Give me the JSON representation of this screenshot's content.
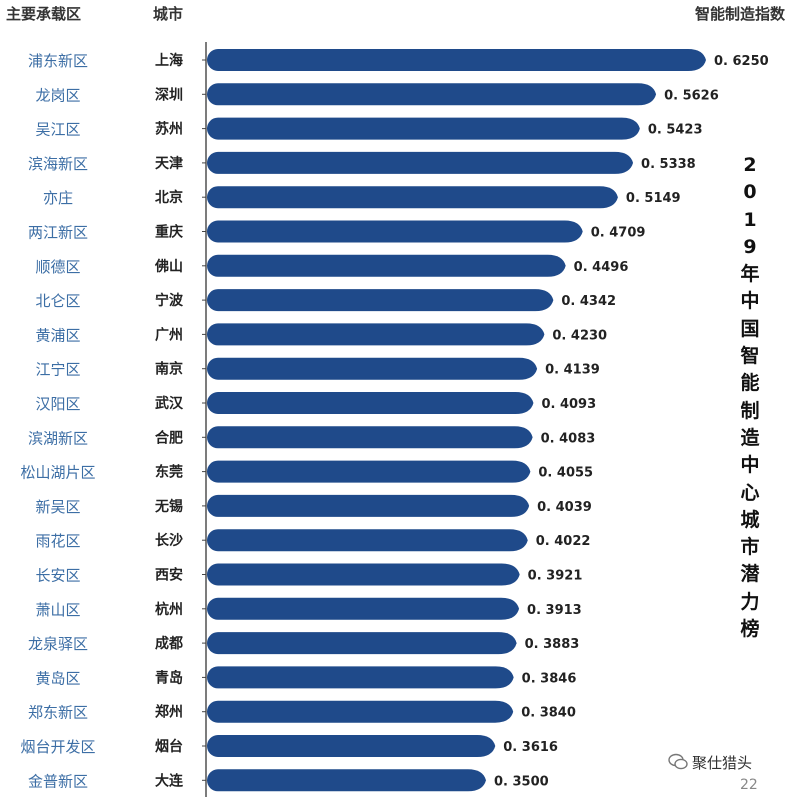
{
  "headers": {
    "zone": "主要承载区",
    "city": "城市",
    "index": "智能制造指数"
  },
  "vertical_title": "2019年中国智能制造中心城市潜力榜",
  "watermark": "聚仕猎头",
  "page_number": "22",
  "colors": {
    "bar": "#1f4a8a",
    "zone_text": "#3c6ea5",
    "axis": "#444444"
  },
  "chart_data": {
    "type": "bar",
    "orientation": "horizontal",
    "xlim": [
      0,
      0.625
    ],
    "rows": [
      {
        "zone": "浦东新区",
        "city": "上海",
        "value": 0.625,
        "label": "0. 6250"
      },
      {
        "zone": "龙岗区",
        "city": "深圳",
        "value": 0.5626,
        "label": "0. 5626"
      },
      {
        "zone": "吴江区",
        "city": "苏州",
        "value": 0.5423,
        "label": "0. 5423"
      },
      {
        "zone": "滨海新区",
        "city": "天津",
        "value": 0.5338,
        "label": "0. 5338"
      },
      {
        "zone": "亦庄",
        "city": "北京",
        "value": 0.5149,
        "label": "0. 5149"
      },
      {
        "zone": "两江新区",
        "city": "重庆",
        "value": 0.4709,
        "label": "0. 4709"
      },
      {
        "zone": "顺德区",
        "city": "佛山",
        "value": 0.4496,
        "label": "0. 4496"
      },
      {
        "zone": "北仑区",
        "city": "宁波",
        "value": 0.4342,
        "label": "0. 4342"
      },
      {
        "zone": "黄浦区",
        "city": "广州",
        "value": 0.423,
        "label": "0. 4230"
      },
      {
        "zone": "江宁区",
        "city": "南京",
        "value": 0.4139,
        "label": "0. 4139"
      },
      {
        "zone": "汉阳区",
        "city": "武汉",
        "value": 0.4093,
        "label": "0. 4093"
      },
      {
        "zone": "滨湖新区",
        "city": "合肥",
        "value": 0.4083,
        "label": "0. 4083"
      },
      {
        "zone": "松山湖片区",
        "city": "东莞",
        "value": 0.4055,
        "label": "0. 4055"
      },
      {
        "zone": "新吴区",
        "city": "无锡",
        "value": 0.4039,
        "label": "0. 4039"
      },
      {
        "zone": "雨花区",
        "city": "长沙",
        "value": 0.4022,
        "label": "0. 4022"
      },
      {
        "zone": "长安区",
        "city": "西安",
        "value": 0.3921,
        "label": "0. 3921"
      },
      {
        "zone": "萧山区",
        "city": "杭州",
        "value": 0.3913,
        "label": "0. 3913"
      },
      {
        "zone": "龙泉驿区",
        "city": "成都",
        "value": 0.3883,
        "label": "0. 3883"
      },
      {
        "zone": "黄岛区",
        "city": "青岛",
        "value": 0.3846,
        "label": "0. 3846"
      },
      {
        "zone": "郑东新区",
        "city": "郑州",
        "value": 0.384,
        "label": "0. 3840"
      },
      {
        "zone": "烟台开发区",
        "city": "烟台",
        "value": 0.3616,
        "label": "0. 3616"
      },
      {
        "zone": "金普新区",
        "city": "大连",
        "value": 0.35,
        "label": "0. 3500"
      }
    ]
  }
}
